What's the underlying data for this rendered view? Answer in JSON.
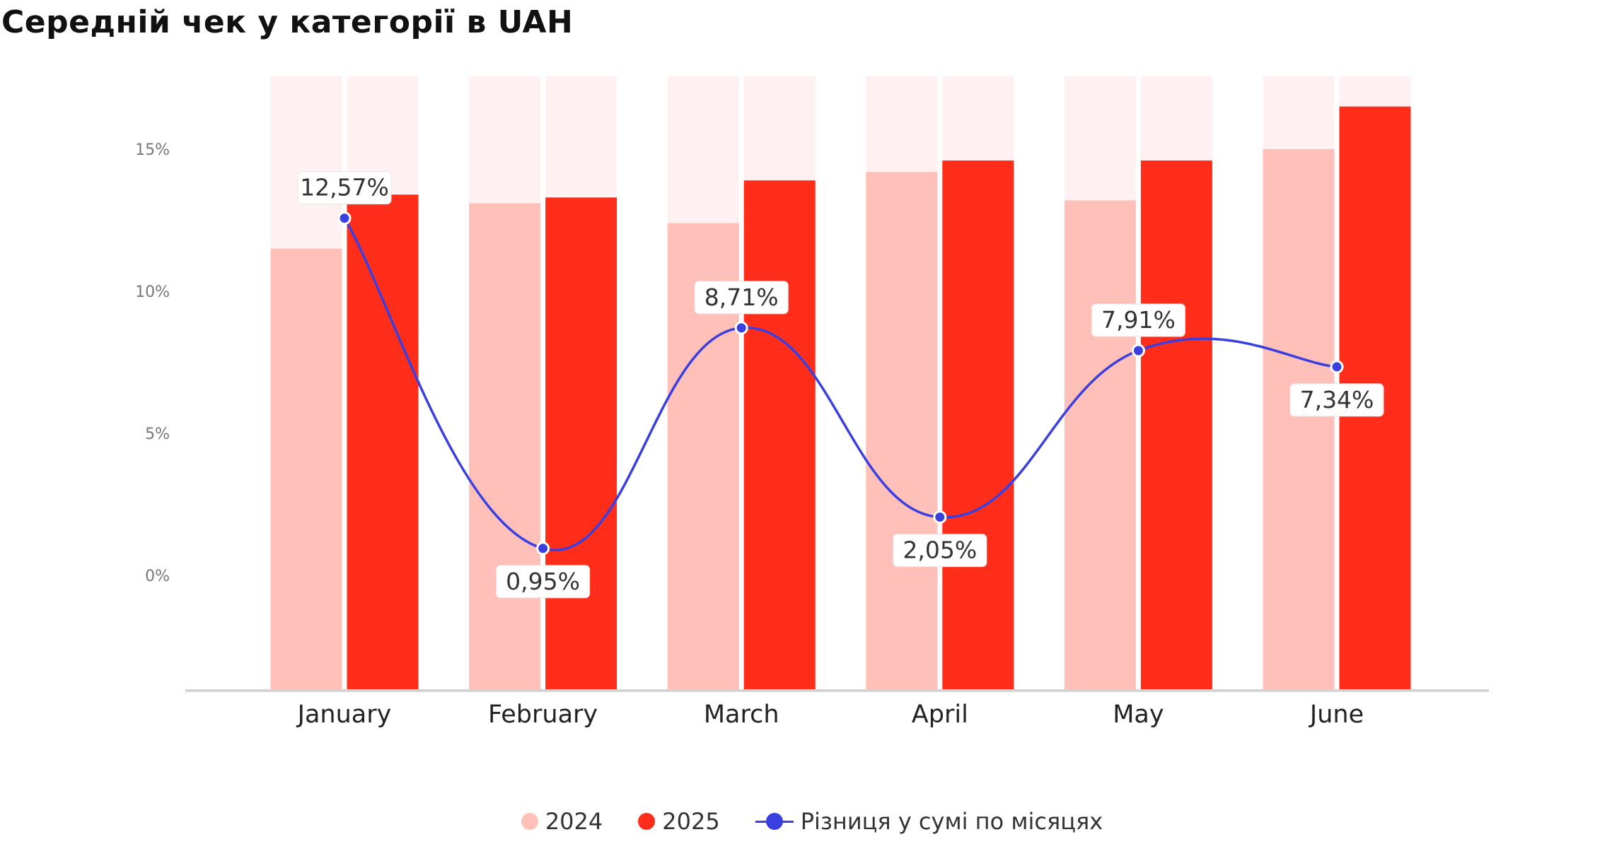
{
  "title": "Середній чек у категорії в UAH",
  "chart_data": {
    "type": "bar",
    "categories": [
      "January",
      "February",
      "March",
      "April",
      "May",
      "June"
    ],
    "y_ticks": [
      "0%",
      "5%",
      "10%",
      "15%"
    ],
    "ylim": [
      -4,
      17.5
    ],
    "grid": false,
    "legend_position": "bottom-center",
    "series": [
      {
        "name": "2024",
        "type": "bar",
        "color": "#ffc0ba",
        "values": [
          11.5,
          13.1,
          12.4,
          14.2,
          13.2,
          15.0
        ]
      },
      {
        "name": "2025",
        "type": "bar",
        "color": "#ff2d1a",
        "values": [
          13.4,
          13.3,
          13.9,
          14.6,
          14.6,
          16.5
        ]
      },
      {
        "name": "Різниця у сумі по місяцях",
        "type": "line",
        "color": "#3a3fe0",
        "values": [
          12.57,
          0.95,
          8.71,
          2.05,
          7.91,
          7.34
        ],
        "labels": [
          "12,57%",
          "0,95%",
          "8,71%",
          "2,05%",
          "7,91%",
          "7,34%"
        ]
      }
    ],
    "background_bar_color": "#fff1f1"
  }
}
